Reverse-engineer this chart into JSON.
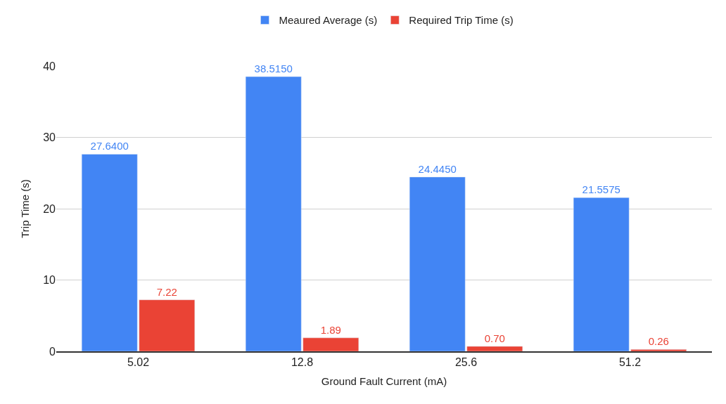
{
  "chart_data": {
    "type": "bar",
    "xlabel": "Ground Fault Current (mA)",
    "ylabel": "Trip Time (s)",
    "categories": [
      "5.02",
      "12.8",
      "25.6",
      "51.2"
    ],
    "series": [
      {
        "name": "Meaured Average (s)",
        "color": "#4285f4",
        "values": [
          27.64,
          38.515,
          24.445,
          21.5575
        ],
        "value_labels": [
          "27.6400",
          "38.5150",
          "24.4450",
          "21.5575"
        ]
      },
      {
        "name": "Required Trip Time (s)",
        "color": "#ea4335",
        "values": [
          7.22,
          1.89,
          0.7,
          0.26
        ],
        "value_labels": [
          "7.22",
          "1.89",
          "0.70",
          "0.26"
        ]
      }
    ],
    "ylim": [
      0,
      40
    ],
    "yticks": [
      0,
      10,
      20,
      30,
      40
    ],
    "grid": "y",
    "legend": "top"
  }
}
